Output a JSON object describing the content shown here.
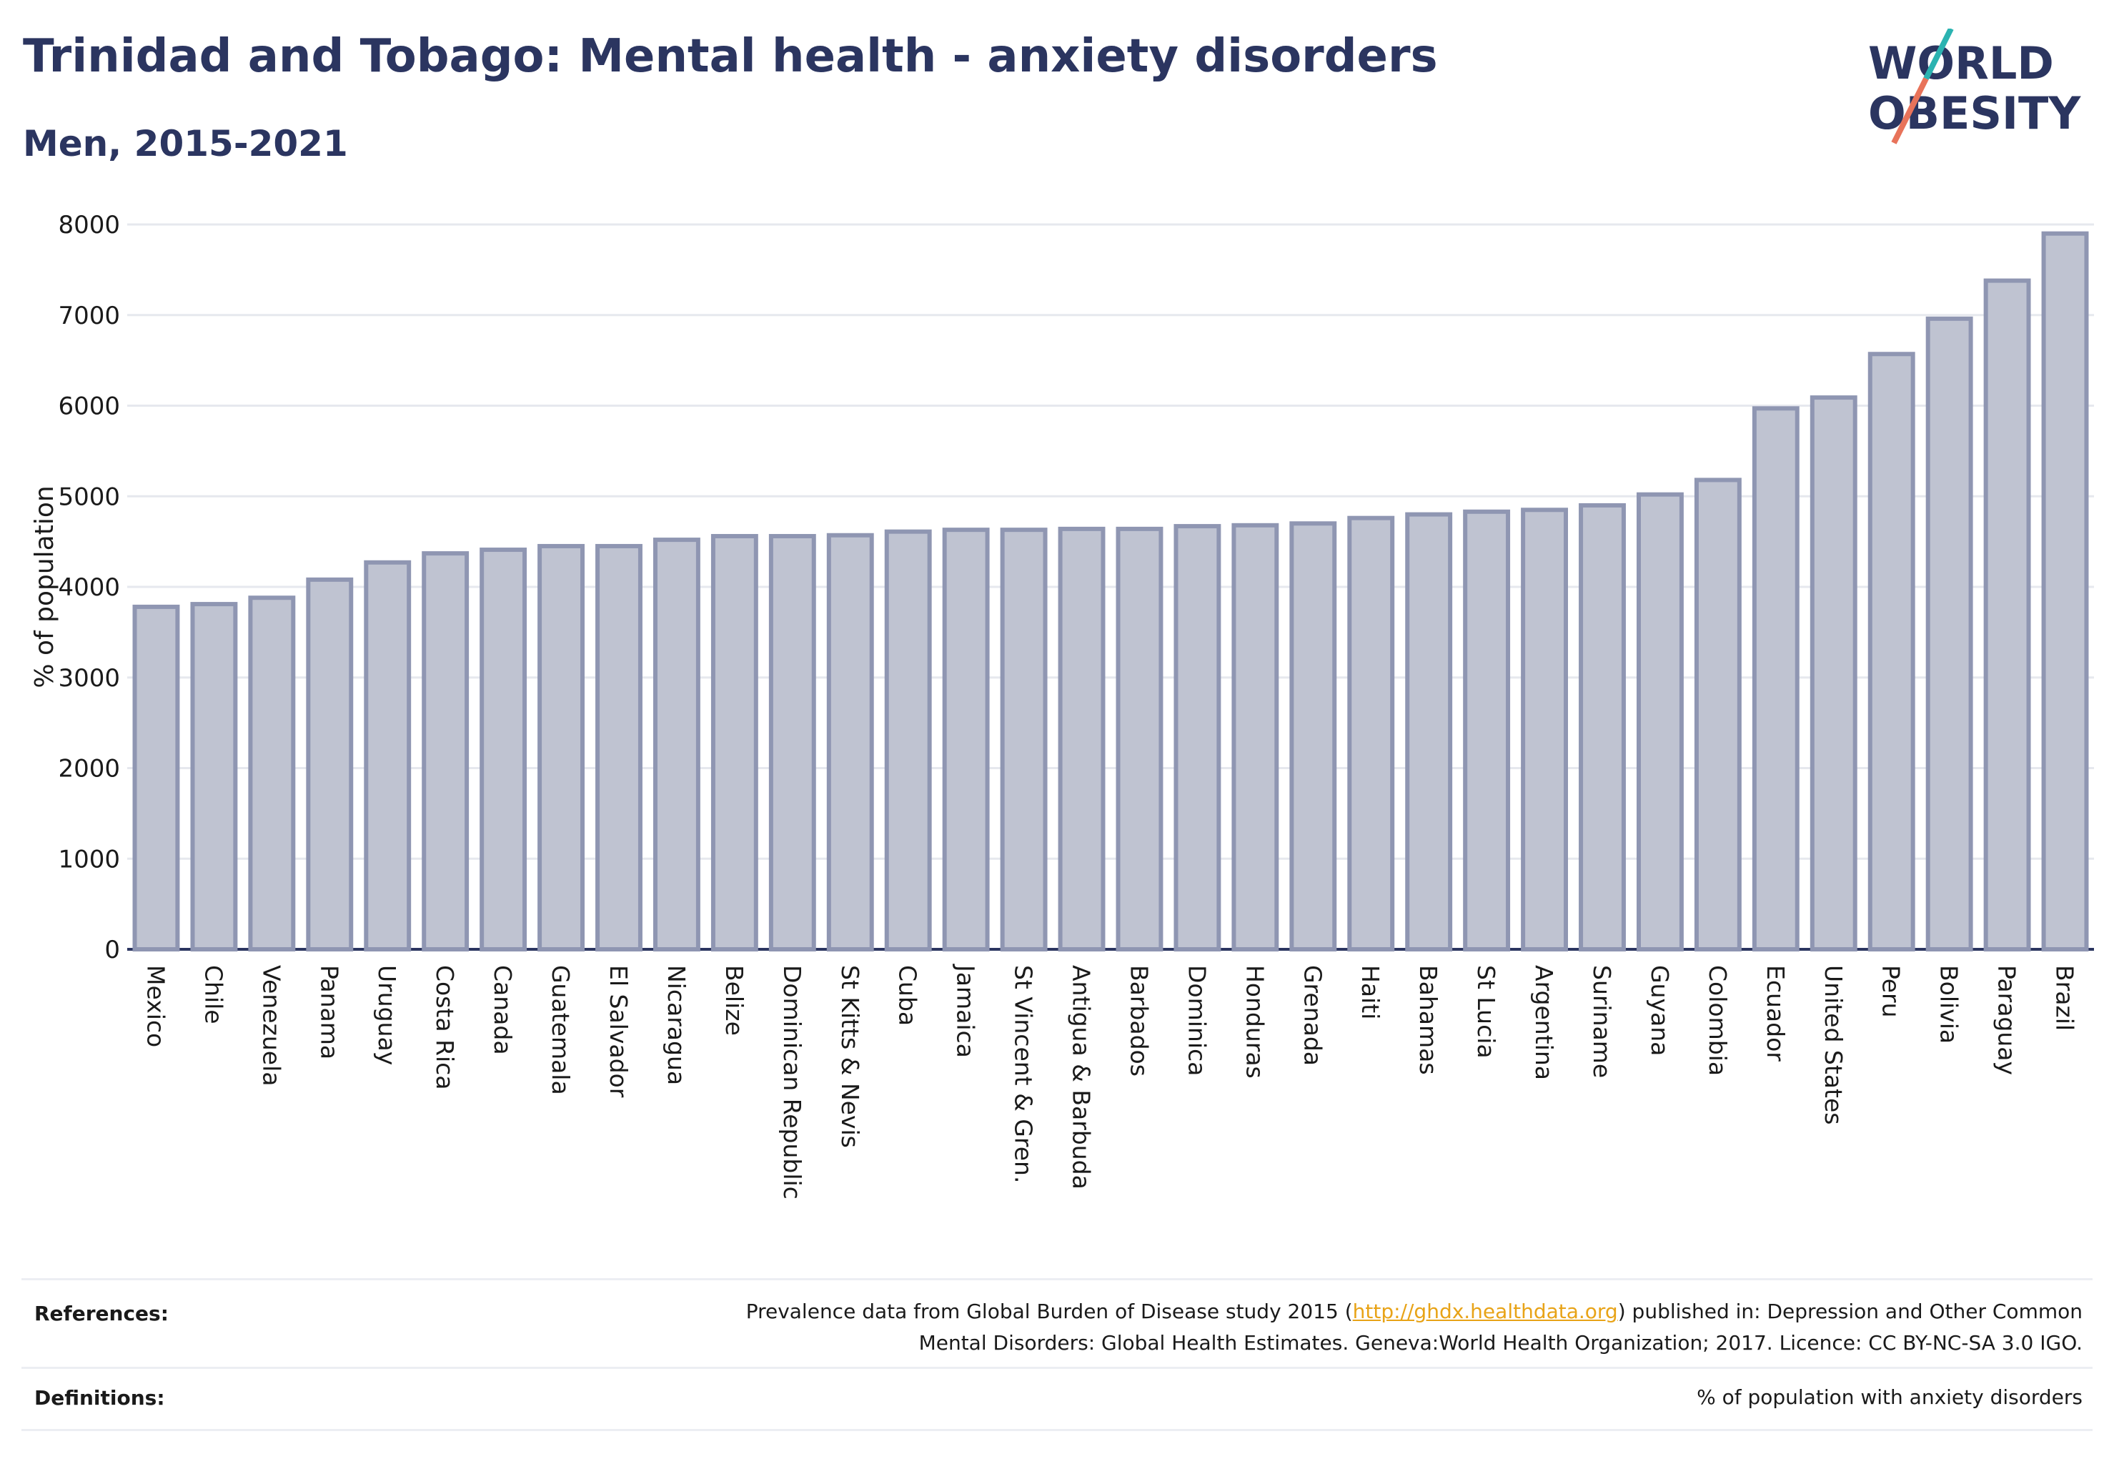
{
  "header": {
    "title": "Trinidad and Tobago: Mental health - anxiety disorders",
    "subtitle": "Men, 2015-2021"
  },
  "logo": {
    "line1": "WORLD",
    "line2": "OBESITY",
    "colors": {
      "text": "#2b3560",
      "slash_top": "#2bb3b1",
      "slash_bottom": "#e8735a"
    }
  },
  "colors": {
    "bar_fill": "#bfc3d1",
    "bar_stroke": "#8f96b2",
    "grid": "#e6e8ee",
    "axis": "#2b3560"
  },
  "chart_data": {
    "type": "bar",
    "title": "Trinidad and Tobago: Mental health - anxiety disorders",
    "subtitle": "Men, 2015-2021",
    "ylabel": "% of population",
    "xlabel": "",
    "ylim": [
      0,
      8000
    ],
    "yticks": [
      0,
      1000,
      2000,
      3000,
      4000,
      5000,
      6000,
      7000,
      8000
    ],
    "grid": true,
    "categories": [
      "Mexico",
      "Chile",
      "Venezuela",
      "Panama",
      "Uruguay",
      "Costa Rica",
      "Canada",
      "Guatemala",
      "El Salvador",
      "Nicaragua",
      "Belize",
      "Dominican Republic",
      "St Kitts & Nevis",
      "Cuba",
      "Jamaica",
      "St Vincent & Gren.",
      "Antigua & Barbuda",
      "Barbados",
      "Dominica",
      "Honduras",
      "Grenada",
      "Haiti",
      "Bahamas",
      "St Lucia",
      "Argentina",
      "Suriname",
      "Guyana",
      "Colombia",
      "Ecuador",
      "United States",
      "Peru",
      "Bolivia",
      "Paraguay",
      "Brazil"
    ],
    "values": [
      3780,
      3810,
      3880,
      4080,
      4270,
      4370,
      4410,
      4450,
      4450,
      4520,
      4560,
      4560,
      4570,
      4610,
      4630,
      4630,
      4640,
      4640,
      4670,
      4680,
      4700,
      4760,
      4800,
      4830,
      4850,
      4900,
      5020,
      5180,
      5970,
      6090,
      6570,
      6960,
      7380,
      7900
    ]
  },
  "footer": {
    "references_label": "References:",
    "references_text_before": "Prevalence data from Global Burden of Disease study 2015 (",
    "references_link": "http://ghdx.healthdata.org",
    "references_text_after": ") published in: Depression and Other Common",
    "references_line2": "Mental Disorders: Global Health Estimates. Geneva:World Health Organization; 2017. Licence: CC BY-NC-SA 3.0 IGO.",
    "definitions_label": "Definitions:",
    "definitions_text": "% of population with anxiety disorders"
  }
}
